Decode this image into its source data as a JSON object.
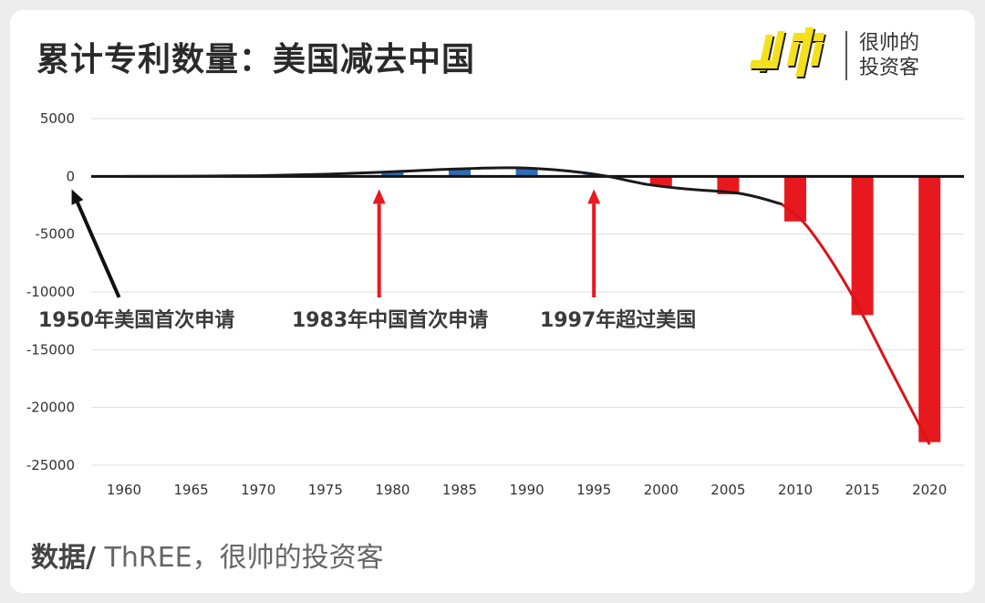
{
  "header": {
    "title": "累计专利数量：美国减去中国",
    "brand_line1": "很帅的",
    "brand_line2": "投资客",
    "brand_colors": {
      "logo_yellow": "#f5e11a",
      "logo_black": "#1a1a1a"
    }
  },
  "footer": {
    "prefix": "数据/",
    "source": " ThREE，很帅的投资客"
  },
  "chart_data": {
    "type": "bar",
    "title": "累计专利数量：美国减去中国",
    "xlabel": "",
    "ylabel": "",
    "ylim": [
      -25000,
      5000
    ],
    "yticks": [
      5000,
      0,
      -5000,
      -10000,
      -15000,
      -20000,
      -25000
    ],
    "ytick_labels": [
      "5000",
      "0",
      "-5000",
      "-10000",
      "-15000",
      "-20000",
      "-25000"
    ],
    "categories": [
      "1960",
      "1965",
      "1970",
      "1975",
      "1980",
      "1985",
      "1990",
      "1995",
      "2000",
      "2005",
      "2010",
      "2015",
      "2020"
    ],
    "values": [
      0,
      10,
      50,
      150,
      350,
      650,
      750,
      150,
      -850,
      -1550,
      -3900,
      -12000,
      -23000
    ],
    "grid": true,
    "colors": {
      "positive": "#2e6db4",
      "negative": "#e8191e",
      "trend_pos": "#1a1a1a",
      "trend_neg": "#d81418",
      "axis": "#111111",
      "grid": "#dddddd"
    },
    "trend_line": {
      "x": [
        1960,
        1965,
        1970,
        1975,
        1980,
        1985,
        1990,
        1995,
        1999,
        2002,
        2006,
        2009,
        2011,
        2014,
        2017,
        2020
      ],
      "y": [
        0,
        20,
        60,
        180,
        400,
        650,
        720,
        200,
        -700,
        -1100,
        -1500,
        -2400,
        -4500,
        -9800,
        -16500,
        -23200
      ]
    },
    "annotations": [
      {
        "text": "1950年美国首次申请",
        "arrow_year": 1958,
        "color": "#111111"
      },
      {
        "text": "1983年中国首次申请",
        "arrow_year": 1979,
        "color": "#e8191e"
      },
      {
        "text": "1997年超过美国",
        "arrow_year": 1995,
        "color": "#e8191e"
      }
    ]
  }
}
